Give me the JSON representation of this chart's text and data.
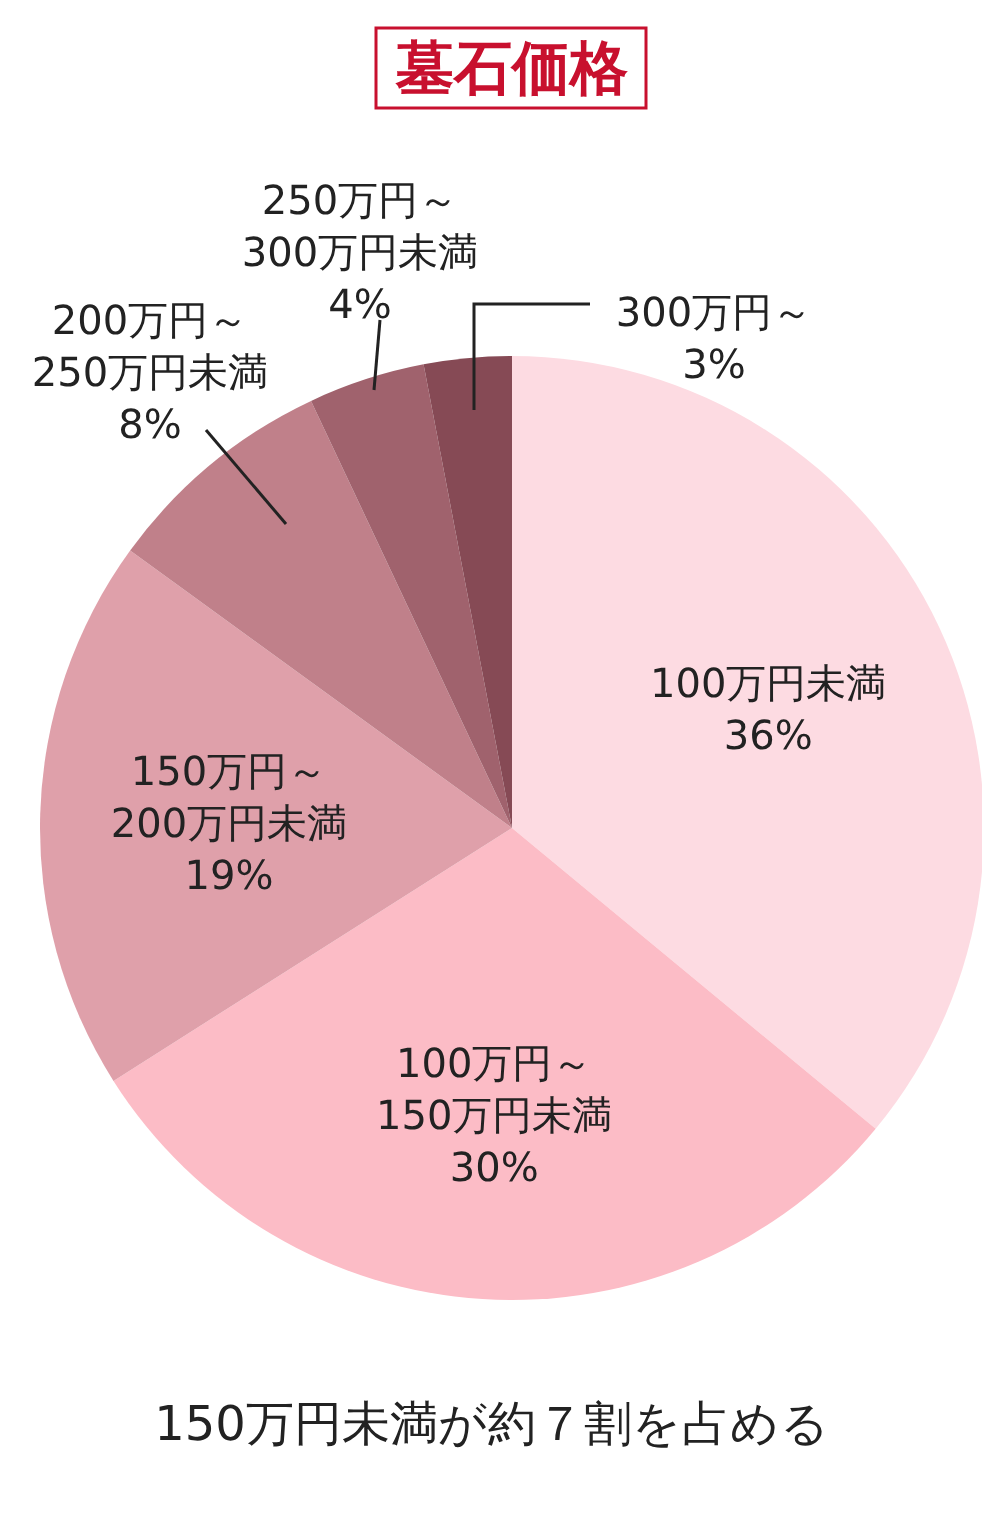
{
  "chart_data": {
    "type": "pie",
    "title": "墓石価格",
    "categories": [
      "100万円未満",
      "100万円～150万円未満",
      "150万円～200万円未満",
      "200万円～250万円未満",
      "250万円～300万円未満",
      "300万円～"
    ],
    "values": [
      36,
      30,
      19,
      8,
      4,
      3
    ],
    "colors": [
      "#fddbe2",
      "#fcbcc6",
      "#dfa0aa",
      "#c0808a",
      "#a0626d",
      "#864a55"
    ],
    "value_labels": [
      "36%",
      "30%",
      "19%",
      "8%",
      "4%",
      "3%"
    ],
    "annotations": [
      "150万円未満が約７割を占める"
    ]
  }
}
